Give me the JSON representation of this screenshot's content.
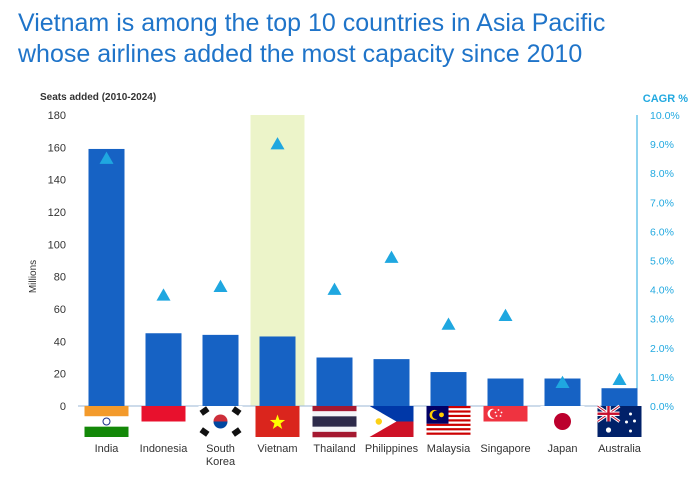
{
  "title_lines": [
    "Vietnam is among the top 10 countries in Asia Pacific",
    "whose airlines added the most capacity since 2010"
  ],
  "colors": {
    "bar": "#1662c4",
    "marker": "#1fa7e0",
    "highlight": "#ecf4c9",
    "title": "#1f74c9",
    "right_axis": "#22a9e0"
  },
  "chart_data": {
    "type": "bar",
    "left_axis_title": "Seats added (2010-2024)",
    "ylabel": "Millions",
    "right_axis_title": "CAGR %",
    "ylim": [
      0,
      180
    ],
    "y_ticks": [
      "0",
      "20",
      "40",
      "60",
      "80",
      "100",
      "120",
      "140",
      "160",
      "180"
    ],
    "y2lim": [
      0,
      10
    ],
    "y2_ticks": [
      "0.0%",
      "1.0%",
      "2.0%",
      "3.0%",
      "4.0%",
      "5.0%",
      "6.0%",
      "7.0%",
      "8.0%",
      "9.0%",
      "10.0%"
    ],
    "categories": [
      "India",
      "Indonesia",
      "South Korea",
      "Vietnam",
      "Thailand",
      "Philippines",
      "Malaysia",
      "Singapore",
      "Japan",
      "Australia"
    ],
    "category_label_lines": [
      [
        "India"
      ],
      [
        "Indonesia"
      ],
      [
        "South",
        "Korea"
      ],
      [
        "Vietnam"
      ],
      [
        "Thailand"
      ],
      [
        "Philippines"
      ],
      [
        "Malaysia"
      ],
      [
        "Singapore"
      ],
      [
        "Japan"
      ],
      [
        "Australia"
      ]
    ],
    "flags": [
      "india-flag",
      "indonesia-flag",
      "south-korea-flag",
      "vietnam-flag",
      "thailand-flag",
      "philippines-flag",
      "malaysia-flag",
      "singapore-flag",
      "japan-flag",
      "australia-flag"
    ],
    "highlight_category": "Vietnam",
    "series": [
      {
        "type": "bar",
        "axis": "left",
        "values": [
          159,
          45,
          44,
          43,
          30,
          29,
          21,
          17,
          17,
          11
        ]
      },
      {
        "type": "marker",
        "marker": "triangle",
        "axis": "right",
        "values": [
          8.5,
          3.8,
          4.1,
          9.0,
          4.0,
          5.1,
          2.8,
          3.1,
          0.8,
          0.9
        ]
      }
    ]
  }
}
